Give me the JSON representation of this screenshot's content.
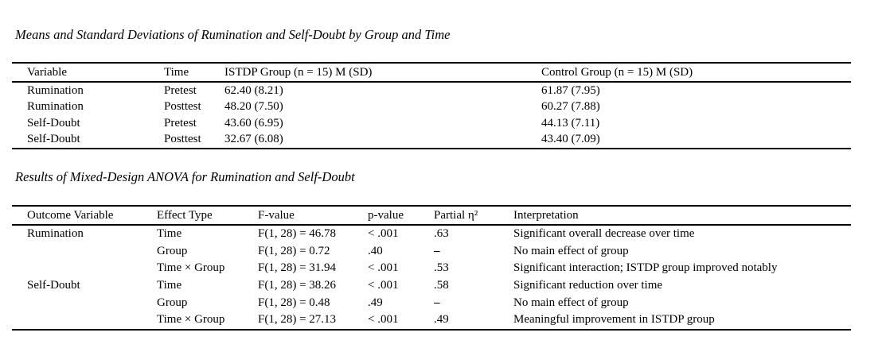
{
  "page": {
    "background": "#ffffff",
    "text_color": "#000000",
    "rule_color": "#000000"
  },
  "table1": {
    "title": "Means and Standard Deviations of Rumination and Self-Doubt by Group and Time",
    "columns": [
      "Variable",
      "Time",
      "ISTDP Group (n = 15) M (SD)",
      "Control Group (n = 15) M (SD)"
    ],
    "rows": [
      [
        "Rumination",
        "Pretest",
        "62.40 (8.21)",
        "61.87 (7.95)"
      ],
      [
        "Rumination",
        "Posttest",
        "48.20 (7.50)",
        "60.27 (7.88)"
      ],
      [
        "Self-Doubt",
        "Pretest",
        "43.60 (6.95)",
        "44.13 (7.11)"
      ],
      [
        "Self-Doubt",
        "Posttest",
        "32.67 (6.08)",
        "43.40 (7.09)"
      ]
    ]
  },
  "table2": {
    "title": "Results of Mixed-Design ANOVA for Rumination and Self-Doubt",
    "columns": [
      "Outcome Variable",
      "Effect Type",
      "F-value",
      "p-value",
      "Partial η²",
      "Interpretation"
    ],
    "rows": [
      [
        "Rumination",
        "Time",
        "F(1, 28) = 46.78",
        "< .001",
        ".63",
        "Significant overall decrease over time"
      ],
      [
        "",
        "Group",
        "F(1, 28) = 0.72",
        ".40",
        "–",
        "No main effect of group"
      ],
      [
        "",
        "Time × Group",
        "F(1, 28) = 31.94",
        "< .001",
        ".53",
        "Significant interaction; ISTDP group improved notably"
      ],
      [
        "Self-Doubt",
        "Time",
        "F(1, 28) = 38.26",
        "< .001",
        ".58",
        "Significant reduction over time"
      ],
      [
        "",
        "Group",
        "F(1, 28) = 0.48",
        ".49",
        "–",
        "No main effect of group"
      ],
      [
        "",
        "Time × Group",
        "F(1, 28) = 27.13",
        "< .001",
        ".49",
        "Meaningful improvement in ISTDP group"
      ]
    ]
  }
}
